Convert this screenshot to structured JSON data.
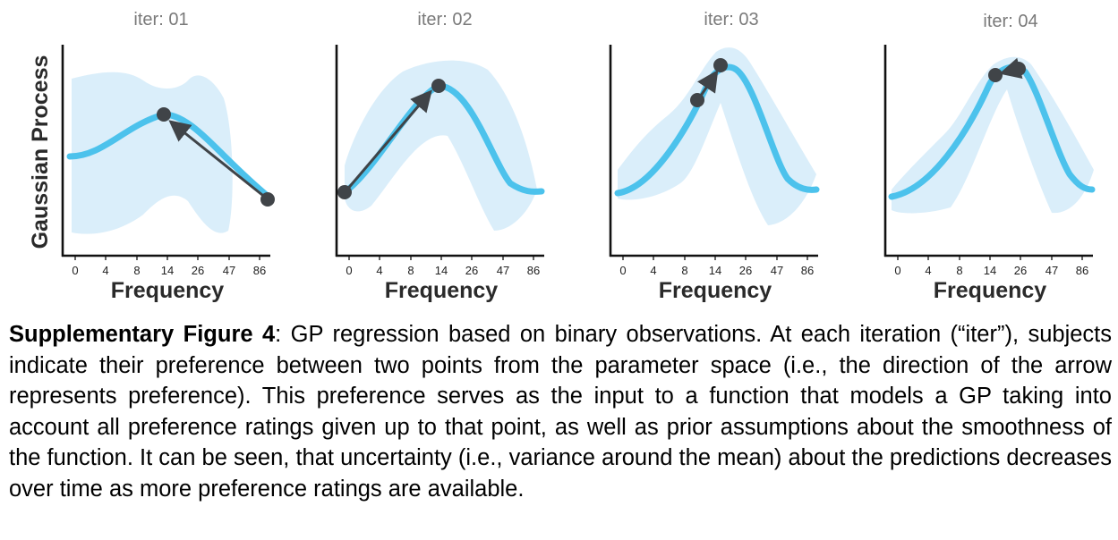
{
  "figure": {
    "ylabel": "Gaussian Process",
    "xlabel": "Frequency",
    "x_ticks": [
      "0",
      "4",
      "8",
      "14",
      "26",
      "47",
      "86"
    ],
    "colors": {
      "mean": "#4cc2ec",
      "band": "#daeefa",
      "points": "#404448",
      "axes": "#111111"
    }
  },
  "chart_data": [
    {
      "type": "line",
      "title": "iter: 01",
      "xlabel": "Frequency",
      "x_categories": [
        "0",
        "4",
        "8",
        "14",
        "26",
        "47",
        "86"
      ],
      "preference": {
        "from": "86",
        "to": "14"
      }
    },
    {
      "type": "line",
      "title": "iter: 02",
      "xlabel": "Frequency",
      "x_categories": [
        "0",
        "4",
        "8",
        "14",
        "26",
        "47",
        "86"
      ],
      "preference": {
        "from": "0",
        "to": "14"
      }
    },
    {
      "type": "line",
      "title": "iter: 03",
      "xlabel": "Frequency",
      "x_categories": [
        "0",
        "4",
        "8",
        "14",
        "26",
        "47",
        "86"
      ],
      "preference": {
        "from": "8-14",
        "to": "14-26"
      }
    },
    {
      "type": "line",
      "title": "iter: 04",
      "xlabel": "Frequency",
      "x_categories": [
        "0",
        "4",
        "8",
        "14",
        "26",
        "47",
        "86"
      ],
      "preference": {
        "from": "26",
        "to": "14-26"
      }
    }
  ],
  "caption": {
    "label": "Supplementary Figure 4",
    "text": ": GP regression based on binary observations. At each iteration (“iter”), subjects indicate their preference between two points from the parameter space (i.e., the direction of the arrow represents preference). This preference serves as the input to a function that models a GP taking into account all preference ratings given up to that point, as well as prior assumptions about the smoothness of the function. It can be seen, that uncertainty (i.e., variance around the mean) about the predictions decreases over time as more preference ratings are available."
  }
}
